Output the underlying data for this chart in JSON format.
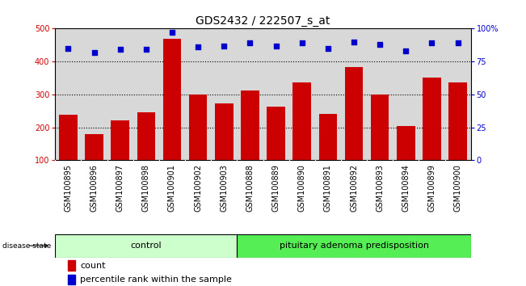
{
  "title": "GDS2432 / 222507_s_at",
  "samples": [
    "GSM100895",
    "GSM100896",
    "GSM100897",
    "GSM100898",
    "GSM100901",
    "GSM100902",
    "GSM100903",
    "GSM100888",
    "GSM100889",
    "GSM100890",
    "GSM100891",
    "GSM100892",
    "GSM100893",
    "GSM100894",
    "GSM100899",
    "GSM100900"
  ],
  "bar_values": [
    238,
    180,
    222,
    245,
    470,
    300,
    272,
    312,
    262,
    337,
    240,
    383,
    300,
    203,
    350,
    337
  ],
  "dot_values": [
    85,
    82,
    84,
    84,
    97,
    86,
    87,
    89,
    87,
    89,
    85,
    90,
    88,
    83,
    89,
    89
  ],
  "bar_color": "#cc0000",
  "dot_color": "#0000cc",
  "ylim_left": [
    100,
    500
  ],
  "ylim_right": [
    0,
    100
  ],
  "yticks_left": [
    100,
    200,
    300,
    400,
    500
  ],
  "yticks_right": [
    0,
    25,
    50,
    75,
    100
  ],
  "ytick_labels_right": [
    "0",
    "25",
    "50",
    "75",
    "100%"
  ],
  "grid_values": [
    200,
    300,
    400
  ],
  "control_count": 7,
  "pituitary_count": 9,
  "group_labels": [
    "control",
    "pituitary adenoma predisposition"
  ],
  "group_color_control": "#ccffcc",
  "group_color_pituitary": "#55ee55",
  "disease_state_label": "disease state",
  "legend_bar_label": "count",
  "legend_dot_label": "percentile rank within the sample",
  "plot_bg_color": "#d8d8d8",
  "title_fontsize": 10,
  "tick_fontsize": 7,
  "label_fontsize": 8,
  "group_fontsize": 8
}
